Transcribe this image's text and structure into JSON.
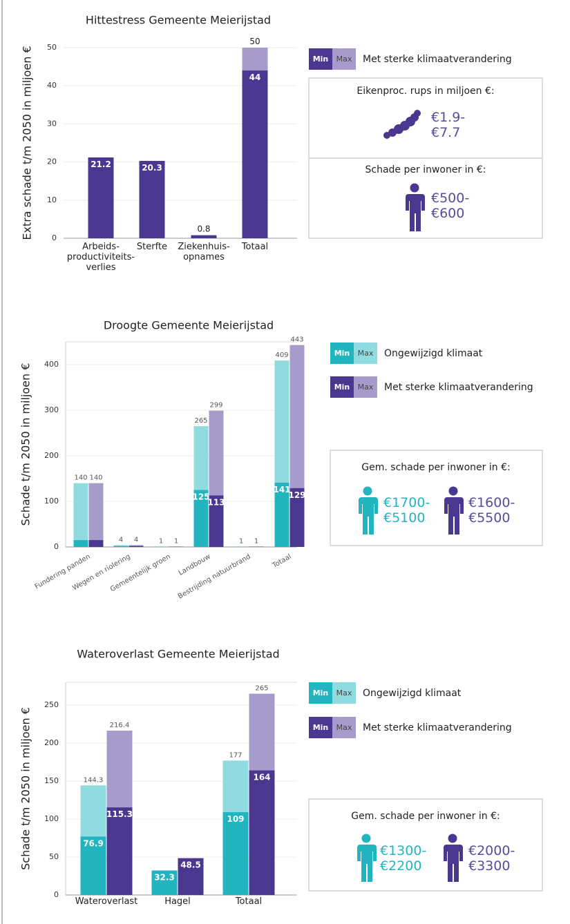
{
  "chart_data": [
    {
      "type": "bar",
      "title": "Hittestress Gemeente Meierijstad",
      "ylabel": "Extra schade t/m 2050 in miljoen €",
      "categories": [
        "Arbeids-\nproductiviteits-\nverlies",
        "Sterfte",
        "Ziekenhuis-\nopnames",
        "Totaal"
      ],
      "ylim": [
        0,
        50
      ],
      "yticks": [
        0,
        10,
        20,
        30,
        40,
        50
      ],
      "grid": true,
      "legend_labels": [
        "Min",
        "Max"
      ],
      "scenarios": [
        {
          "name": "Met sterke klimaatverandering",
          "min": {
            "color": "#4a3790",
            "values": [
              21.2,
              20.3,
              0.8,
              44
            ],
            "value_labels": [
              "21.2",
              "20.3",
              "0.8",
              "44"
            ]
          },
          "max": {
            "color": "#a79bcc",
            "values": [
              null,
              null,
              null,
              50
            ],
            "value_labels": [
              null,
              null,
              null,
              "50"
            ]
          }
        }
      ]
    },
    {
      "type": "bar",
      "title": "Droogte Gemeente Meierijstad",
      "ylabel": "Schade t/m 2050 in miljoen €",
      "categories": [
        "Fundering panden",
        "Wegen en riolering",
        "Gemeentelijk groen",
        "Landbouw",
        "Bestrijding natuurbrand",
        "Totaal"
      ],
      "ylim": [
        0,
        450
      ],
      "yticks": [
        0,
        100,
        200,
        300,
        400
      ],
      "grid": true,
      "legend_labels": [
        "Min",
        "Max"
      ],
      "scenarios": [
        {
          "name": "Ongewijzigd klimaat",
          "min": {
            "color": "#22b5c0",
            "values": [
              15,
              2,
              0.5,
              125,
              0.5,
              141
            ],
            "value_labels": [
              null,
              null,
              null,
              "125",
              null,
              "141"
            ]
          },
          "max": {
            "color": "#90dbe0",
            "values": [
              140,
              4,
              1,
              265,
              1,
              409
            ],
            "value_labels": [
              "140",
              "4",
              "1",
              "265",
              "1",
              "409"
            ]
          }
        },
        {
          "name": "Met sterke klimaatverandering",
          "min": {
            "color": "#4a3790",
            "values": [
              15,
              2,
              0.5,
              113,
              0.5,
              129
            ],
            "value_labels": [
              null,
              null,
              null,
              "113",
              null,
              "129"
            ]
          },
          "max": {
            "color": "#a79bcc",
            "values": [
              140,
              4,
              1,
              299,
              1,
              443
            ],
            "value_labels": [
              "140",
              "4",
              "1",
              "299",
              "1",
              "443"
            ]
          }
        }
      ]
    },
    {
      "type": "bar",
      "title": "Wateroverlast Gemeente Meierijstad",
      "ylabel": "Schade t/m 2050 in miljoen €",
      "categories": [
        "Wateroverlast",
        "Hagel",
        "Totaal"
      ],
      "ylim": [
        0,
        280
      ],
      "yticks": [
        0,
        50,
        100,
        150,
        200,
        250
      ],
      "grid": true,
      "legend_labels": [
        "Min",
        "Max"
      ],
      "scenarios": [
        {
          "name": "Ongewijzigd klimaat",
          "min": {
            "color": "#22b5c0",
            "values": [
              76.9,
              32.3,
              109
            ],
            "value_labels": [
              "76.9",
              "32.3",
              "109"
            ]
          },
          "max": {
            "color": "#90dbe0",
            "values": [
              144.3,
              null,
              177
            ],
            "value_labels": [
              "144.3",
              null,
              "177"
            ]
          }
        },
        {
          "name": "Met sterke klimaatverandering",
          "min": {
            "color": "#4a3790",
            "values": [
              115.3,
              48.5,
              164
            ],
            "value_labels": [
              "115.3",
              "48.5",
              "164"
            ]
          },
          "max": {
            "color": "#a79bcc",
            "values": [
              216.4,
              null,
              265
            ],
            "value_labels": [
              "216.4",
              null,
              "265"
            ]
          }
        }
      ]
    }
  ],
  "panels": [
    {
      "sections": [
        {
          "title": "Eikenproc. rups in miljoen €:",
          "values": [
            "€1.9-\n€7.7"
          ]
        },
        {
          "title": "Schade per inwoner in €:",
          "values": [
            "€500-\n€600"
          ]
        }
      ]
    },
    {
      "sections": [
        {
          "title": "Gem. schade per inwoner in €:",
          "values": [
            "€1700-\n€5100",
            "€1600-\n€5500"
          ]
        }
      ]
    },
    {
      "sections": [
        {
          "title": "Gem. schade per inwoner in €:",
          "values": [
            "€1300-\n€2200",
            "€2000-\n€3300"
          ]
        }
      ]
    }
  ]
}
